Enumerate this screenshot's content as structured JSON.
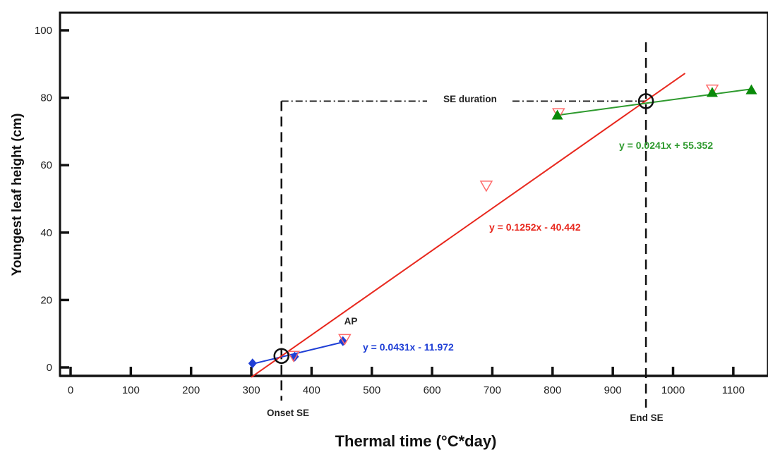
{
  "chart_data": {
    "type": "scatter",
    "xlabel": "Thermal time (°C*day)",
    "ylabel": "Youngest leaf height (cm)",
    "xlim": [
      -20,
      1130
    ],
    "ylim": [
      -3,
      105
    ],
    "xticks": [
      0,
      100,
      200,
      300,
      400,
      500,
      600,
      700,
      800,
      900,
      1000,
      1100
    ],
    "yticks": [
      0,
      20,
      40,
      60,
      80,
      100
    ],
    "grid": false,
    "series": [
      {
        "marker": "diamond",
        "color": "#1f3fd6",
        "points": [
          {
            "x": 302,
            "y": 1.2
          },
          {
            "x": 372,
            "y": 3.2
          },
          {
            "x": 452,
            "y": 7.8
          }
        ]
      },
      {
        "marker": "triangle-down-open",
        "color": "#ff6a6a",
        "points": [
          {
            "x": 370,
            "y": 3.5
          },
          {
            "x": 455,
            "y": 8.5
          },
          {
            "x": 690,
            "y": 54
          },
          {
            "x": 810,
            "y": 75.5
          },
          {
            "x": 1065,
            "y": 82.5
          }
        ]
      },
      {
        "marker": "triangle-up",
        "color": "#0a8a0a",
        "points": [
          {
            "x": 808,
            "y": 74.8
          },
          {
            "x": 1065,
            "y": 81.5
          },
          {
            "x": 1130,
            "y": 82.3
          }
        ]
      }
    ],
    "fits": [
      {
        "label": "y = 0.0431x - 11.972",
        "slope": 0.0431,
        "intercept": -11.972,
        "x_range": [
          302,
          458
        ],
        "color": "#1f3fd6"
      },
      {
        "label": "y = 0.1252x - 40.442",
        "slope": 0.1252,
        "intercept": -40.442,
        "x_range": [
          300,
          1020
        ],
        "color": "#e8281e"
      },
      {
        "label": "y = 0.0241x + 55.352",
        "slope": 0.0241,
        "intercept": 55.352,
        "x_range": [
          808,
          1130
        ],
        "color": "#2e9a2e"
      }
    ],
    "annotations": {
      "onset_label": "Onset SE",
      "end_label": "End SE",
      "duration_label": "SE duration",
      "ap_label": "AP",
      "onset_x": 350,
      "end_x": 955,
      "duration_y": 79
    }
  }
}
